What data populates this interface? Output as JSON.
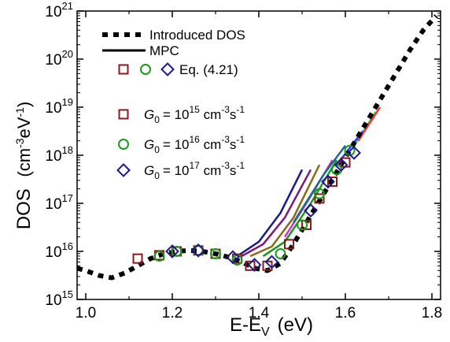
{
  "chart_data": {
    "type": "scatter",
    "xlabel": "E-E",
    "xlabel_sub": "V",
    "xlabel_unit": "(eV)",
    "ylabel": "DOS",
    "ylabel_unit": "(cm-3eV-1)",
    "xlim": [
      0.98,
      1.82
    ],
    "ylim_log10": [
      15,
      21
    ],
    "y_scale": "log",
    "x_ticks": [
      {
        "v": 1.0,
        "label": "1.0"
      },
      {
        "v": 1.2,
        "label": "1.2"
      },
      {
        "v": 1.4,
        "label": "1.4"
      },
      {
        "v": 1.6,
        "label": "1.6"
      },
      {
        "v": 1.8,
        "label": "1.8"
      }
    ],
    "y_ticks": [
      {
        "e": 15,
        "base": "10",
        "exp": "15"
      },
      {
        "e": 16,
        "base": "10",
        "exp": "16"
      },
      {
        "e": 17,
        "base": "10",
        "exp": "17"
      },
      {
        "e": 18,
        "base": "10",
        "exp": "18"
      },
      {
        "e": 19,
        "base": "10",
        "exp": "19"
      },
      {
        "e": 20,
        "base": "10",
        "exp": "20"
      },
      {
        "e": 21,
        "base": "10",
        "exp": "21"
      }
    ],
    "legend": {
      "introduced": "Introduced DOS",
      "mpc": "MPC",
      "eq": "Eq. (4.21)",
      "g0_symbol": "G",
      "g0_sub": "0",
      "g0_entries": [
        {
          "marker": "square",
          "color": "#8b1a1a",
          "coef": "= 10",
          "exp": "15",
          "unit": " cm",
          "unit_exp": "-3",
          "unit_tail": "s",
          "unit_tail_exp": "-1"
        },
        {
          "marker": "circle",
          "color": "#1a9a1a",
          "coef": "= 10",
          "exp": "16",
          "unit": " cm",
          "unit_exp": "-3",
          "unit_tail": "s",
          "unit_tail_exp": "-1"
        },
        {
          "marker": "diamond",
          "color": "#1a1a8b",
          "coef": "= 10",
          "exp": "17",
          "unit": " cm",
          "unit_exp": "-3",
          "unit_tail": "s",
          "unit_tail_exp": "-1"
        }
      ]
    },
    "series": [
      {
        "name": "Introduced DOS",
        "style": "dashed-black",
        "color": "#000000",
        "x": [
          0.98,
          1.0,
          1.03,
          1.06,
          1.09,
          1.12,
          1.15,
          1.18,
          1.21,
          1.24,
          1.27,
          1.3,
          1.33,
          1.36,
          1.39,
          1.42,
          1.45,
          1.48,
          1.51,
          1.54,
          1.57,
          1.6,
          1.63,
          1.66,
          1.69,
          1.72,
          1.75,
          1.78,
          1.81
        ],
        "log10y": [
          15.65,
          15.6,
          15.5,
          15.45,
          15.55,
          15.7,
          15.85,
          15.95,
          16.0,
          16.02,
          16.0,
          15.95,
          15.88,
          15.78,
          15.65,
          15.6,
          15.75,
          16.15,
          16.6,
          17.05,
          17.5,
          17.95,
          18.4,
          18.85,
          19.3,
          19.75,
          20.2,
          20.6,
          20.9
        ]
      },
      {
        "name": "G0 = 10^15",
        "marker": "square",
        "color": "#8b1a1a",
        "x": [
          1.12,
          1.17,
          1.21,
          1.26,
          1.3,
          1.35,
          1.38,
          1.42,
          1.47,
          1.51,
          1.54,
          1.57,
          1.6
        ],
        "log10y": [
          15.85,
          15.92,
          16.0,
          16.02,
          15.95,
          15.85,
          15.7,
          15.7,
          16.15,
          16.55,
          17.1,
          17.45,
          17.85
        ]
      },
      {
        "name": "G0 = 10^16",
        "marker": "circle",
        "color": "#1a9a1a",
        "x": [
          1.17,
          1.21,
          1.26,
          1.3,
          1.35,
          1.45,
          1.5,
          1.54,
          1.58,
          1.61
        ],
        "log10y": [
          15.9,
          16.0,
          16.02,
          15.95,
          15.82,
          15.95,
          16.55,
          17.2,
          17.7,
          18.1
        ]
      },
      {
        "name": "G0 = 10^17",
        "marker": "diamond",
        "color": "#1a1a8b",
        "x": [
          1.2,
          1.26,
          1.34,
          1.39,
          1.43,
          1.52,
          1.56,
          1.59,
          1.62
        ],
        "log10y": [
          16.0,
          16.02,
          15.88,
          15.72,
          15.78,
          16.85,
          17.45,
          17.8,
          18.05
        ]
      }
    ],
    "mpc_lines": [
      {
        "color": "#1a1a8b",
        "x": [
          1.35,
          1.4,
          1.45,
          1.5
        ],
        "log10y": [
          15.9,
          16.2,
          16.8,
          17.7
        ]
      },
      {
        "color": "#7a1a7a",
        "x": [
          1.36,
          1.41,
          1.46,
          1.52
        ],
        "log10y": [
          15.9,
          16.15,
          16.7,
          17.7
        ]
      },
      {
        "color": "#8b6a1a",
        "x": [
          1.38,
          1.43,
          1.48,
          1.54
        ],
        "log10y": [
          15.9,
          16.1,
          16.7,
          17.8
        ]
      },
      {
        "color": "#1a9a1a",
        "x": [
          1.41,
          1.46,
          1.52,
          1.58
        ],
        "log10y": [
          15.9,
          16.2,
          17.0,
          17.9
        ]
      },
      {
        "color": "#cc33cc",
        "x": [
          1.46,
          1.51,
          1.57
        ],
        "log10y": [
          16.3,
          17.0,
          17.9
        ]
      },
      {
        "color": "#1a6b8b",
        "x": [
          1.48,
          1.55,
          1.6
        ],
        "log10y": [
          16.6,
          17.6,
          18.2
        ]
      },
      {
        "color": "#33dd33",
        "x": [
          1.62,
          1.67
        ],
        "log10y": [
          18.2,
          18.9
        ]
      },
      {
        "color": "#ff3333",
        "x": [
          1.63,
          1.68
        ],
        "log10y": [
          18.3,
          19.0
        ]
      },
      {
        "color": "#3333ff",
        "x": [
          1.58,
          1.64
        ],
        "log10y": [
          17.8,
          18.5
        ]
      }
    ]
  }
}
